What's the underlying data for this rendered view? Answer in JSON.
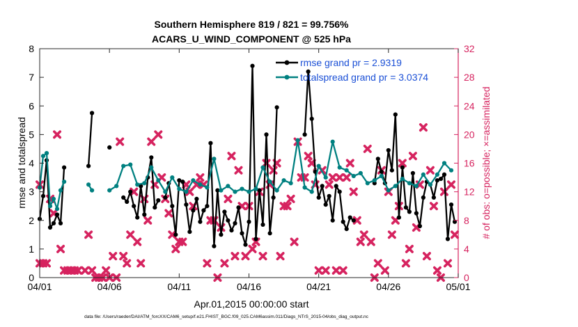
{
  "chart_data": {
    "type": "line",
    "title": "Southern Hemisphere 819 / 821 = 99.756%",
    "subtitle": "ACARS_U_WIND_COMPONENT @ 525 hPa",
    "xlabel": "Apr.01,2015 00:00:00 start",
    "ylabel": "rmse and totalspread",
    "y2label": "# of obs: o=possible; ×=assimilated",
    "xlim": [
      0,
      30
    ],
    "ylim": [
      0,
      8
    ],
    "y2lim": [
      0,
      32
    ],
    "x_ticks": [
      0,
      5,
      10,
      15,
      20,
      25,
      30
    ],
    "x_tick_labels": [
      "04/01",
      "04/06",
      "04/11",
      "04/16",
      "04/21",
      "04/26",
      "05/01"
    ],
    "y_ticks": [
      "0",
      "1",
      "2",
      "3",
      "4",
      "5",
      "6",
      "7",
      "8"
    ],
    "y2_ticks": [
      "0",
      "4",
      "8",
      "12",
      "16",
      "20",
      "24",
      "28",
      "32"
    ],
    "grid": false,
    "legend_position": "top-right",
    "colors": {
      "rmse": "#000000",
      "spread": "#008080",
      "obs": "#d6235f",
      "legend_text": "#1a4fd6"
    },
    "series": [
      {
        "name": "rmse grand pr = 2.9319",
        "role": "rmse",
        "x": [
          0.0,
          0.25,
          0.5,
          0.75,
          1.0,
          1.25,
          1.5,
          1.75,
          2.0,
          2.25,
          2.5,
          null,
          3.5,
          3.75,
          null,
          5.0,
          null,
          6.0,
          6.25,
          6.5,
          6.75,
          7.0,
          7.25,
          7.5,
          7.75,
          8.0,
          8.25,
          8.5,
          null,
          9.0,
          9.25,
          9.5,
          9.75,
          10.0,
          10.25,
          10.5,
          10.75,
          11.0,
          11.25,
          11.5,
          11.75,
          12.0,
          12.25,
          12.5,
          12.75,
          13.0,
          13.25,
          13.5,
          13.75,
          14.0,
          14.25,
          14.5,
          14.75,
          15.0,
          15.25,
          15.5,
          15.75,
          16.0,
          16.25,
          16.5,
          16.75,
          17.0,
          null,
          19.0,
          19.25,
          19.5,
          19.75,
          20.0,
          20.25,
          20.5,
          20.75,
          21.0,
          21.25,
          21.5,
          21.75,
          22.0,
          22.25,
          22.5,
          null,
          24.0,
          24.25,
          24.5,
          24.75,
          25.0,
          25.25,
          25.5,
          25.75,
          26.0,
          26.25,
          26.5,
          26.75,
          27.0,
          27.25,
          27.5,
          27.75,
          28.0,
          28.25,
          28.5,
          28.75,
          29.0,
          29.25,
          29.5,
          29.75
        ],
        "values": [
          2.05,
          2.85,
          4.1,
          1.75,
          1.9,
          2.2,
          1.9,
          3.85,
          null,
          null,
          null,
          null,
          3.9,
          5.75,
          null,
          4.55,
          null,
          2.8,
          2.65,
          3.0,
          2.5,
          2.1,
          3.2,
          2.2,
          3.5,
          4.2,
          2.45,
          2.7,
          null,
          2.8,
          3.3,
          2.5,
          1.5,
          3.4,
          3.35,
          2.55,
          1.6,
          2.35,
          2.75,
          1.95,
          2.35,
          2.5,
          4.7,
          1.1,
          3.05,
          1.5,
          2.3,
          2.0,
          1.65,
          1.9,
          2.45,
          1.55,
          1.15,
          1.95,
          7.4,
          1.35,
          3.05,
          1.85,
          5.0,
          1.55,
          2.8,
          5.95,
          null,
          5.0,
          7.2,
          5.55,
          3.7,
          2.8,
          3.2,
          2.55,
          2.85,
          2.0,
          3.2,
          3.0,
          1.95,
          1.7,
          2.1,
          2.0,
          null,
          3.3,
          4.15,
          3.7,
          3.3,
          4.45,
          3.75,
          5.7,
          2.1,
          3.85,
          2.45,
          2.3,
          3.65,
          2.25,
          1.8,
          2.8,
          3.35,
          3.25,
          2.8,
          3.4,
          3.45,
          3.6,
          1.35,
          2.55,
          1.95
        ]
      },
      {
        "name": "totalspread grand pr = 3.0374",
        "role": "spread",
        "x": [
          0.0,
          0.25,
          0.5,
          0.75,
          1.0,
          1.25,
          1.5,
          1.75,
          null,
          3.5,
          3.75,
          null,
          5.0,
          5.5,
          6.0,
          6.5,
          7.0,
          7.5,
          8.0,
          8.5,
          9.0,
          9.5,
          10.0,
          10.5,
          11.0,
          11.5,
          12.0,
          12.5,
          13.0,
          13.5,
          14.0,
          14.5,
          15.0,
          15.5,
          16.0,
          16.5,
          17.0,
          17.5,
          18.0,
          18.5,
          19.0,
          19.5,
          20.0,
          20.5,
          21.0,
          21.5,
          22.0,
          22.5,
          23.0,
          23.5,
          24.0,
          24.5,
          25.0,
          25.5,
          26.0,
          26.5,
          27.0,
          27.5,
          28.0,
          28.5,
          29.0,
          29.5
        ],
        "values": [
          3.15,
          4.25,
          4.35,
          2.5,
          2.75,
          2.4,
          3.05,
          3.35,
          null,
          3.25,
          3.05,
          null,
          3.05,
          3.2,
          3.9,
          3.95,
          3.25,
          3.3,
          3.85,
          3.4,
          3.0,
          3.5,
          3.1,
          3.0,
          3.4,
          3.25,
          3.15,
          4.15,
          3.05,
          3.2,
          3.0,
          3.1,
          3.0,
          3.1,
          3.85,
          3.35,
          3.05,
          3.4,
          3.3,
          4.8,
          3.15,
          3.0,
          3.9,
          3.5,
          4.75,
          3.85,
          3.75,
          3.55,
          3.65,
          3.3,
          3.4,
          3.55,
          3.05,
          3.2,
          3.45,
          3.3,
          3.2,
          3.6,
          3.25,
          3.6,
          4.0,
          3.75
        ]
      }
    ],
    "obs_series": {
      "name": "# of obs (× = assimilated)",
      "axis": "right",
      "x": [
        0.0,
        0.0,
        0.25,
        0.5,
        0.75,
        1.0,
        1.25,
        1.5,
        1.75,
        2.0,
        2.25,
        2.5,
        2.75,
        3.25,
        3.5,
        3.75,
        4.0,
        4.25,
        4.5,
        4.75,
        5.0,
        5.25,
        5.5,
        5.75,
        6.0,
        6.25,
        6.5,
        6.75,
        7.0,
        7.25,
        7.5,
        7.75,
        8.0,
        8.25,
        8.5,
        8.75,
        9.0,
        9.25,
        9.5,
        9.75,
        10.0,
        10.25,
        10.5,
        10.75,
        11.0,
        11.25,
        11.5,
        11.75,
        12.0,
        12.25,
        12.5,
        12.75,
        13.0,
        13.25,
        13.5,
        13.75,
        14.0,
        14.25,
        14.5,
        14.75,
        15.0,
        15.25,
        15.5,
        15.75,
        16.0,
        16.25,
        16.5,
        16.75,
        17.0,
        17.25,
        17.5,
        17.75,
        18.0,
        18.25,
        18.5,
        18.75,
        19.0,
        19.25,
        19.5,
        19.75,
        20.0,
        20.25,
        20.5,
        20.75,
        21.0,
        21.25,
        21.5,
        21.75,
        22.0,
        22.25,
        22.5,
        22.75,
        23.0,
        23.25,
        23.5,
        23.75,
        24.0,
        24.25,
        24.5,
        24.75,
        25.0,
        25.25,
        25.5,
        25.75,
        26.0,
        26.25,
        26.5,
        26.75,
        27.0,
        27.25,
        27.5,
        27.75,
        28.0,
        28.25,
        28.5,
        28.75,
        29.0,
        29.25,
        29.5,
        29.75
      ],
      "values": [
        13,
        2,
        2,
        2,
        11,
        9,
        20,
        4,
        1,
        1,
        1,
        1,
        1,
        1,
        6,
        1,
        0,
        0,
        0,
        1,
        0,
        3,
        0,
        19,
        3,
        2,
        6,
        12,
        5,
        2,
        11,
        8,
        19,
        13,
        20,
        14,
        11,
        9,
        6,
        4,
        5,
        5,
        13,
        12,
        10,
        13,
        14,
        13,
        2,
        8,
        8,
        0,
        7,
        2,
        11,
        17,
        3,
        15,
        10,
        3,
        10,
        4,
        5,
        12,
        3,
        16,
        13,
        15,
        16,
        3,
        10,
        10,
        11,
        5,
        19,
        14,
        14,
        17,
        16,
        13,
        1,
        15,
        1,
        13,
        14,
        1,
        14,
        1,
        14,
        16,
        12,
        8,
        5,
        6,
        18,
        5,
        0,
        2,
        15,
        1,
        12,
        6,
        8,
        10,
        16,
        2,
        4,
        17,
        7,
        13,
        21,
        3,
        15,
        10,
        1,
        0,
        12,
        2,
        13,
        6
      ],
      "possible_x": [
        19.75
      ],
      "possible_values": [
        15
      ]
    }
  }
}
